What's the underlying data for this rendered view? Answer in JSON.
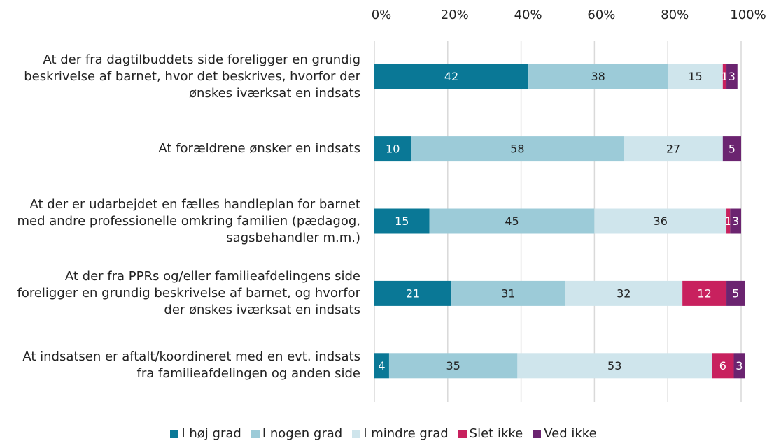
{
  "chart_data": {
    "type": "stacked_barh",
    "categories": [
      "At der fra dagtilbuddets side foreligger en grundig beskrivelse af barnet, hvor det beskrives, hvorfor der ønskes iværksat en indsats",
      "At forældrene ønsker en indsats",
      "At der er udarbejdet en fælles handleplan for barnet med andre professionelle omkring familien (pædagog, sagsbehandler m.m.)",
      "At der fra PPRs og/eller familieafdelingens side foreligger en grundig beskrivelse af barnet, og hvorfor der ønskes iværksat en indsats",
      "At indsatsen er aftalt/koordineret med en evt. indsats fra familieafdelingen og anden side"
    ],
    "series": [
      {
        "name": "I høj grad",
        "color": "#0a7896",
        "label_color": "#ffffff",
        "values": [
          42,
          10,
          15,
          21,
          4
        ]
      },
      {
        "name": "I nogen grad",
        "color": "#9ccbd8",
        "label_color": "#222222",
        "values": [
          38,
          58,
          45,
          31,
          35
        ]
      },
      {
        "name": "I mindre grad",
        "color": "#cfe5ec",
        "label_color": "#222222",
        "values": [
          15,
          27,
          36,
          32,
          53
        ]
      },
      {
        "name": "Slet ikke",
        "color": "#c8215e",
        "label_color": "#ffffff",
        "values": [
          1,
          null,
          1,
          12,
          6
        ]
      },
      {
        "name": "Ved ikke",
        "color": "#6b2470",
        "label_color": "#ffffff",
        "values": [
          3,
          5,
          3,
          5,
          3
        ]
      }
    ],
    "xlim": [
      0,
      100
    ],
    "xticks": [
      {
        "value": 0,
        "label": "0%"
      },
      {
        "value": 20,
        "label": "20%"
      },
      {
        "value": 40,
        "label": "40%"
      },
      {
        "value": 60,
        "label": "60%"
      },
      {
        "value": 80,
        "label": "80%"
      },
      {
        "value": 100,
        "label": "100%"
      }
    ],
    "grid": true,
    "legend": "bottom"
  }
}
